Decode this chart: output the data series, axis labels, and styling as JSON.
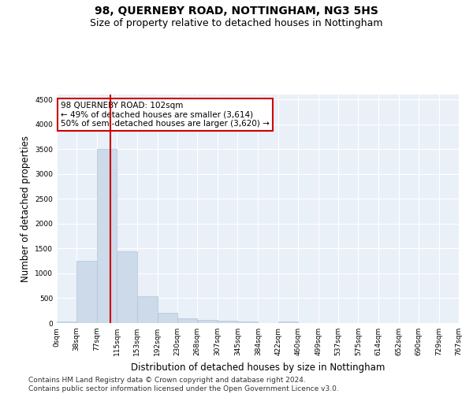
{
  "title": "98, QUERNEBY ROAD, NOTTINGHAM, NG3 5HS",
  "subtitle": "Size of property relative to detached houses in Nottingham",
  "xlabel": "Distribution of detached houses by size in Nottingham",
  "ylabel": "Number of detached properties",
  "bar_color": "#ccdaea",
  "bar_edge_color": "#afc5d8",
  "background_color": "#ffffff",
  "plot_bg_color": "#eaf0f8",
  "grid_color": "#ffffff",
  "annotation_line1": "98 QUERNEBY ROAD: 102sqm",
  "annotation_line2": "← 49% of detached houses are smaller (3,614)",
  "annotation_line3": "50% of semi-detached houses are larger (3,620) →",
  "annotation_box_color": "#ffffff",
  "annotation_box_edge_color": "#cc0000",
  "vline_x": 102,
  "vline_color": "#cc0000",
  "categories": [
    "0sqm",
    "38sqm",
    "77sqm",
    "115sqm",
    "153sqm",
    "192sqm",
    "230sqm",
    "268sqm",
    "307sqm",
    "345sqm",
    "384sqm",
    "422sqm",
    "460sqm",
    "499sqm",
    "537sqm",
    "575sqm",
    "614sqm",
    "652sqm",
    "690sqm",
    "729sqm",
    "767sqm"
  ],
  "bin_edges": [
    0,
    38,
    77,
    115,
    153,
    192,
    230,
    268,
    307,
    345,
    384,
    422,
    460,
    499,
    537,
    575,
    614,
    652,
    690,
    729,
    767
  ],
  "values": [
    25,
    1250,
    3500,
    1450,
    540,
    200,
    100,
    70,
    50,
    35,
    0,
    30,
    0,
    0,
    0,
    0,
    0,
    0,
    0,
    0,
    0
  ],
  "ylim": [
    0,
    4600
  ],
  "yticks": [
    0,
    500,
    1000,
    1500,
    2000,
    2500,
    3000,
    3500,
    4000,
    4500
  ],
  "footnote": "Contains HM Land Registry data © Crown copyright and database right 2024.\nContains public sector information licensed under the Open Government Licence v3.0.",
  "title_fontsize": 10,
  "subtitle_fontsize": 9,
  "tick_fontsize": 6.5,
  "label_fontsize": 8.5,
  "annotation_fontsize": 7.5,
  "footnote_fontsize": 6.5
}
